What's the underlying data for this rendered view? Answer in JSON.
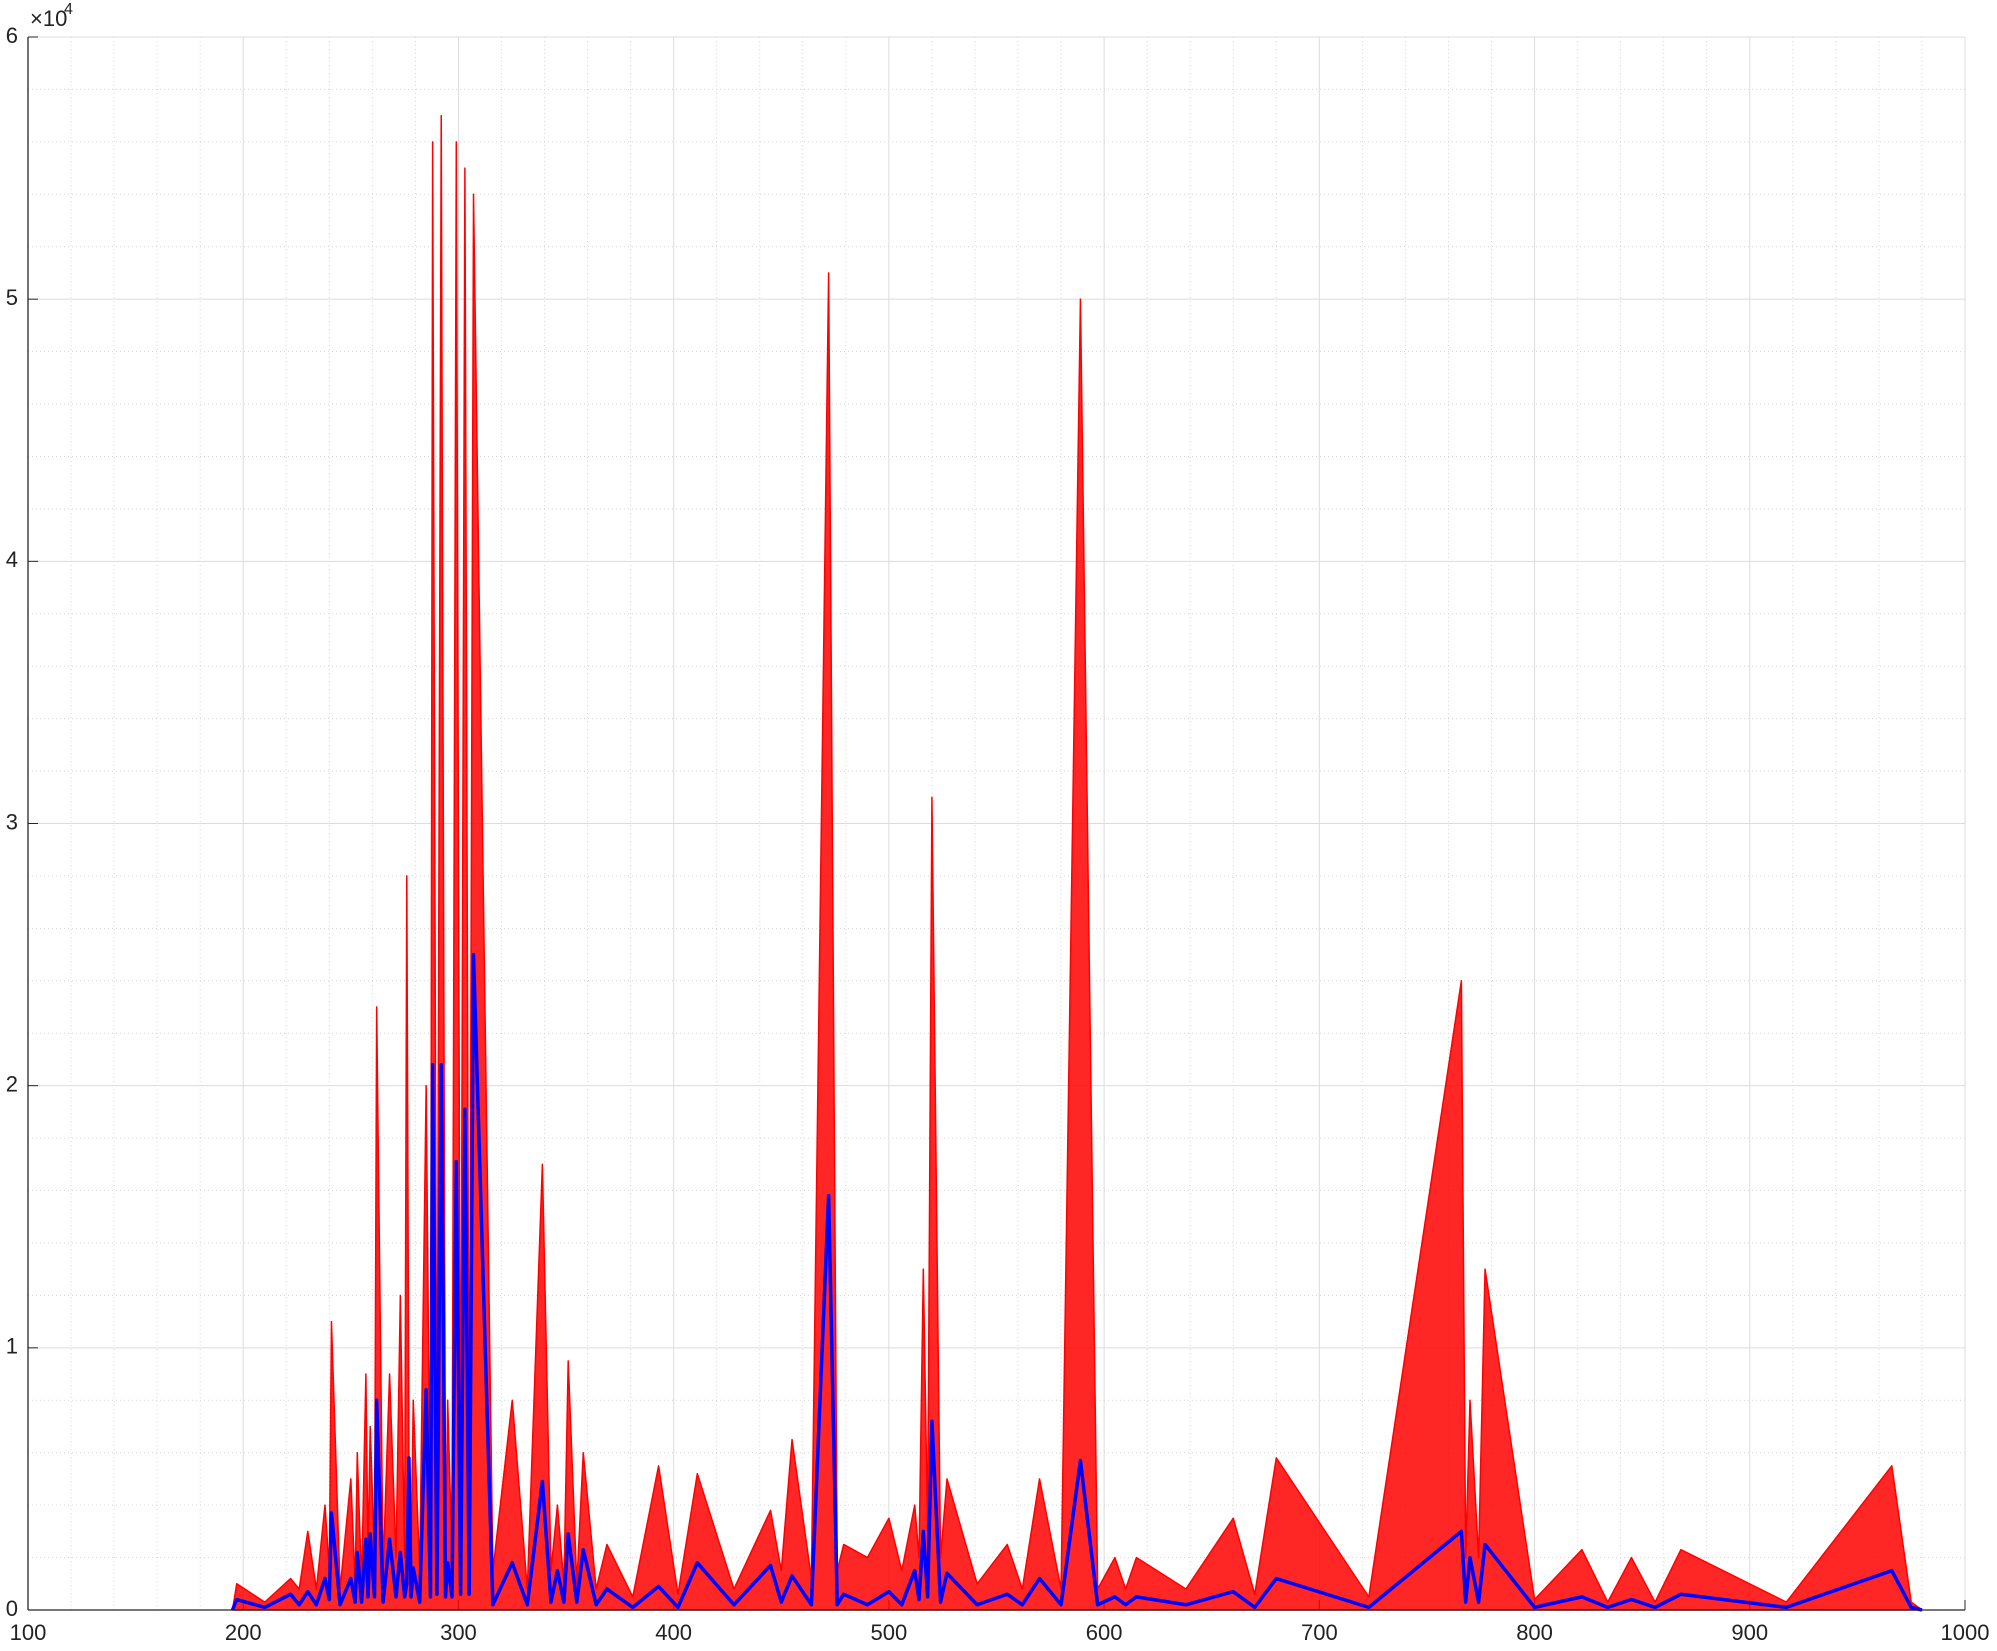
{
  "chart_data": {
    "type": "line",
    "y_exponent_base": "×10",
    "y_exponent_power": "4",
    "x": [
      195,
      197,
      210,
      222,
      226,
      230,
      234,
      238,
      240,
      241,
      245,
      250,
      252,
      253,
      255,
      257,
      258,
      259,
      261,
      262,
      265,
      268,
      271,
      273,
      275,
      276,
      277,
      278,
      279,
      282,
      285,
      287,
      288,
      290,
      292,
      294,
      295,
      297,
      299,
      301,
      303,
      305,
      307,
      316,
      325,
      332,
      339,
      343,
      346,
      349,
      351,
      355,
      358,
      364,
      369,
      381,
      393,
      402,
      411,
      428,
      445,
      450,
      455,
      464,
      472,
      476,
      479,
      490,
      500,
      506,
      512,
      514,
      516,
      518,
      520,
      524,
      527,
      541,
      555,
      562,
      570,
      580,
      589,
      597,
      605,
      610,
      615,
      638,
      660,
      670,
      680,
      723,
      766,
      768,
      770,
      774,
      777,
      800,
      822,
      834,
      845,
      856,
      868,
      917,
      966,
      975,
      980
    ],
    "series": [
      {
        "color": "#ff0000",
        "fill": true,
        "values": [
          0,
          1000,
          300,
          1200,
          800,
          3000,
          800,
          4000,
          1500,
          11000,
          800,
          5000,
          1000,
          6000,
          1000,
          9000,
          2000,
          7000,
          2000,
          23000,
          1500,
          9000,
          2000,
          12000,
          2000,
          28000,
          6000,
          2000,
          8000,
          1500,
          20000,
          2000,
          56000,
          3000,
          57000,
          2000,
          8000,
          2000,
          56000,
          3000,
          55000,
          3000,
          54000,
          1500,
          8000,
          800,
          17000,
          1500,
          4000,
          1000,
          9500,
          1000,
          6000,
          800,
          2500,
          500,
          5500,
          600,
          5200,
          800,
          3800,
          1500,
          6500,
          1200,
          51000,
          1500,
          2500,
          2000,
          3500,
          1500,
          4000,
          2000,
          13000,
          3000,
          31000,
          2000,
          5000,
          1000,
          2500,
          800,
          5000,
          800,
          50000,
          800,
          2000,
          800,
          2000,
          800,
          3500,
          600,
          5800,
          500,
          24000,
          2000,
          8000,
          2000,
          13000,
          400,
          2300,
          300,
          2000,
          300,
          2300,
          300,
          5500,
          300,
          0
        ]
      },
      {
        "color": "#0000ff",
        "fill": false,
        "values": [
          0,
          400,
          100,
          600,
          200,
          700,
          200,
          1200,
          400,
          3700,
          200,
          1200,
          300,
          2200,
          300,
          2700,
          500,
          2900,
          500,
          8000,
          300,
          2700,
          500,
          2200,
          500,
          1000,
          5800,
          500,
          1600,
          300,
          8400,
          500,
          20800,
          600,
          20800,
          500,
          1800,
          500,
          17100,
          600,
          19100,
          600,
          25000,
          200,
          1800,
          200,
          4900,
          300,
          1500,
          300,
          2900,
          300,
          2300,
          200,
          800,
          100,
          900,
          100,
          1800,
          200,
          1700,
          300,
          1300,
          200,
          15800,
          200,
          600,
          200,
          700,
          200,
          1500,
          400,
          3000,
          500,
          7200,
          300,
          1400,
          200,
          600,
          200,
          1200,
          200,
          5700,
          200,
          500,
          200,
          500,
          200,
          700,
          100,
          1200,
          100,
          3000,
          300,
          2000,
          300,
          2500,
          100,
          500,
          100,
          400,
          100,
          600,
          100,
          1500,
          100,
          0
        ]
      }
    ],
    "xlim": [
      100,
      1000
    ],
    "xticks": [
      100,
      200,
      300,
      400,
      500,
      600,
      700,
      800,
      900,
      1000
    ],
    "ylim": [
      0,
      60000
    ],
    "yticks": [
      0,
      {
        "value": 10000,
        "label": "1"
      },
      {
        "value": 20000,
        "label": "2"
      },
      {
        "value": 30000,
        "label": "3"
      },
      {
        "value": 40000,
        "label": "4"
      },
      {
        "value": 50000,
        "label": "5"
      },
      {
        "value": 60000,
        "label": "6"
      }
    ],
    "grid": true,
    "minor_grid": true
  }
}
